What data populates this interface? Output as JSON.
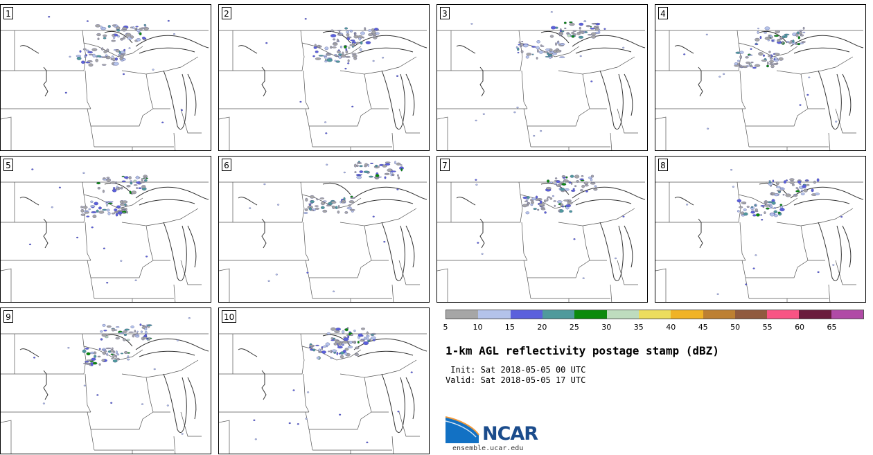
{
  "panels": [
    {
      "id": "1",
      "label": "1"
    },
    {
      "id": "2",
      "label": "2"
    },
    {
      "id": "3",
      "label": "3"
    },
    {
      "id": "4",
      "label": "4"
    },
    {
      "id": "5",
      "label": "5"
    },
    {
      "id": "6",
      "label": "6"
    },
    {
      "id": "7",
      "label": "7"
    },
    {
      "id": "8",
      "label": "8"
    },
    {
      "id": "9",
      "label": "9"
    },
    {
      "id": "10",
      "label": "10"
    }
  ],
  "colorbar": {
    "ticks": [
      "5",
      "10",
      "15",
      "20",
      "25",
      "30",
      "35",
      "40",
      "45",
      "50",
      "55",
      "60",
      "65"
    ],
    "colors": [
      "#a6a6a6",
      "#b4c3ea",
      "#5b60dc",
      "#4f9a9c",
      "#0c8a0c",
      "#bedcbe",
      "#ecdd5e",
      "#f0b326",
      "#bd8032",
      "#905a3e",
      "#f85484",
      "#6a1c3c",
      "#b04aa6"
    ]
  },
  "title": "1-km AGL reflectivity postage stamp (dBZ)",
  "init_line": " Init: Sat 2018-05-05 00 UTC",
  "valid_line": "Valid: Sat 2018-05-05 17 UTC",
  "logo": {
    "name": "NCAR",
    "site": "ensemble.ucar.edu"
  }
}
